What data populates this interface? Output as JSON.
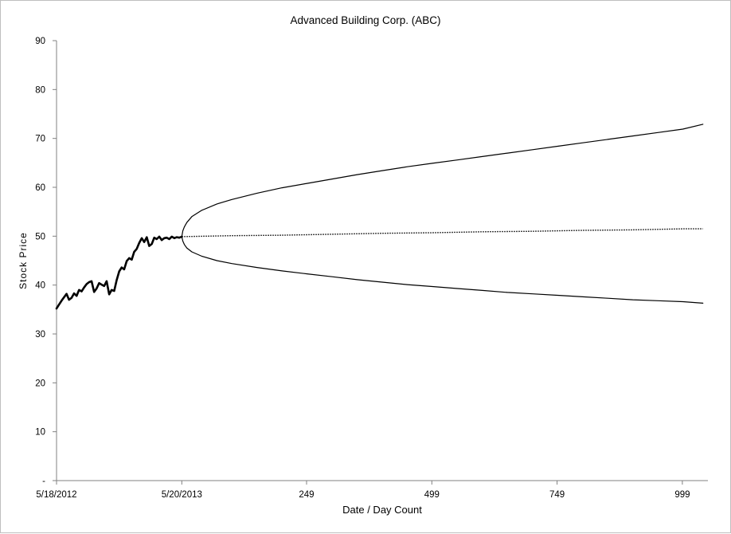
{
  "chart_data": {
    "type": "line",
    "title": "Advanced Building Corp. (ABC)",
    "xlabel": "Date / Day Count",
    "ylabel": "Stock Price",
    "ylim": [
      0,
      90
    ],
    "yticks": [
      0,
      10,
      20,
      30,
      40,
      50,
      60,
      70,
      80,
      90
    ],
    "ytick_labels": [
      "-",
      "10",
      "20",
      "30",
      "40",
      "50",
      "60",
      "70",
      "80",
      "90"
    ],
    "xlim": [
      -250,
      1050
    ],
    "xticks": [
      -250,
      0,
      249,
      499,
      749,
      999
    ],
    "xtick_labels": [
      "5/18/2012",
      "5/20/2013",
      "249",
      "499",
      "749",
      "999"
    ],
    "grid": false,
    "legend": "none",
    "colors": {
      "line": "#000000",
      "axis": "#808080",
      "frame": "#bfbfbf"
    },
    "series": [
      {
        "style": "bold",
        "x": [
          -250,
          -245,
          -240,
          -235,
          -230,
          -225,
          -220,
          -215,
          -210,
          -205,
          -200,
          -195,
          -190,
          -185,
          -180,
          -175,
          -170,
          -165,
          -160,
          -155,
          -150,
          -145,
          -140,
          -135,
          -130,
          -125,
          -120,
          -115,
          -110,
          -105,
          -100,
          -95,
          -90,
          -85,
          -80,
          -75,
          -70,
          -65,
          -60,
          -55,
          -50,
          -45,
          -40,
          -35,
          -30,
          -25,
          -20,
          -15,
          -10,
          -5,
          0
        ],
        "y": [
          35.2,
          36.0,
          36.8,
          37.5,
          38.2,
          37.0,
          37.4,
          38.3,
          37.8,
          39.0,
          38.7,
          39.5,
          40.2,
          40.6,
          40.8,
          38.6,
          39.3,
          40.4,
          40.1,
          39.8,
          40.8,
          38.1,
          39.0,
          38.8,
          41.0,
          42.8,
          43.6,
          43.2,
          44.9,
          45.5,
          45.2,
          46.8,
          47.4,
          48.6,
          49.6,
          48.8,
          49.8,
          48.0,
          48.4,
          49.7,
          49.4,
          49.9,
          49.2,
          49.6,
          49.7,
          49.4,
          49.9,
          49.6,
          49.8,
          49.7,
          49.9
        ]
      },
      {
        "style": "upper",
        "x": [
          0,
          2,
          5,
          10,
          20,
          40,
          70,
          100,
          150,
          200,
          250,
          300,
          350,
          400,
          450,
          500,
          550,
          600,
          650,
          700,
          750,
          800,
          850,
          900,
          950,
          1000,
          1040
        ],
        "y": [
          49.9,
          51.1,
          51.9,
          52.8,
          54.0,
          55.3,
          56.6,
          57.5,
          58.8,
          59.9,
          60.8,
          61.7,
          62.6,
          63.4,
          64.2,
          64.9,
          65.6,
          66.3,
          67.0,
          67.7,
          68.4,
          69.1,
          69.8,
          70.5,
          71.2,
          71.9,
          72.9
        ]
      },
      {
        "style": "dotted",
        "x": [
          0,
          100,
          200,
          300,
          400,
          500,
          600,
          700,
          800,
          900,
          1000,
          1040
        ],
        "y": [
          49.9,
          50.1,
          50.2,
          50.4,
          50.6,
          50.7,
          50.9,
          51.0,
          51.2,
          51.3,
          51.5,
          51.5
        ]
      },
      {
        "style": "lower",
        "x": [
          0,
          2,
          5,
          10,
          20,
          40,
          70,
          100,
          150,
          200,
          250,
          300,
          350,
          400,
          450,
          500,
          550,
          600,
          650,
          700,
          750,
          800,
          850,
          900,
          950,
          1000,
          1040
        ],
        "y": [
          49.9,
          49.0,
          48.3,
          47.6,
          46.8,
          45.9,
          45.0,
          44.4,
          43.6,
          42.9,
          42.3,
          41.7,
          41.1,
          40.6,
          40.1,
          39.7,
          39.3,
          38.9,
          38.5,
          38.2,
          37.9,
          37.6,
          37.3,
          37.0,
          36.8,
          36.6,
          36.3
        ]
      }
    ]
  }
}
